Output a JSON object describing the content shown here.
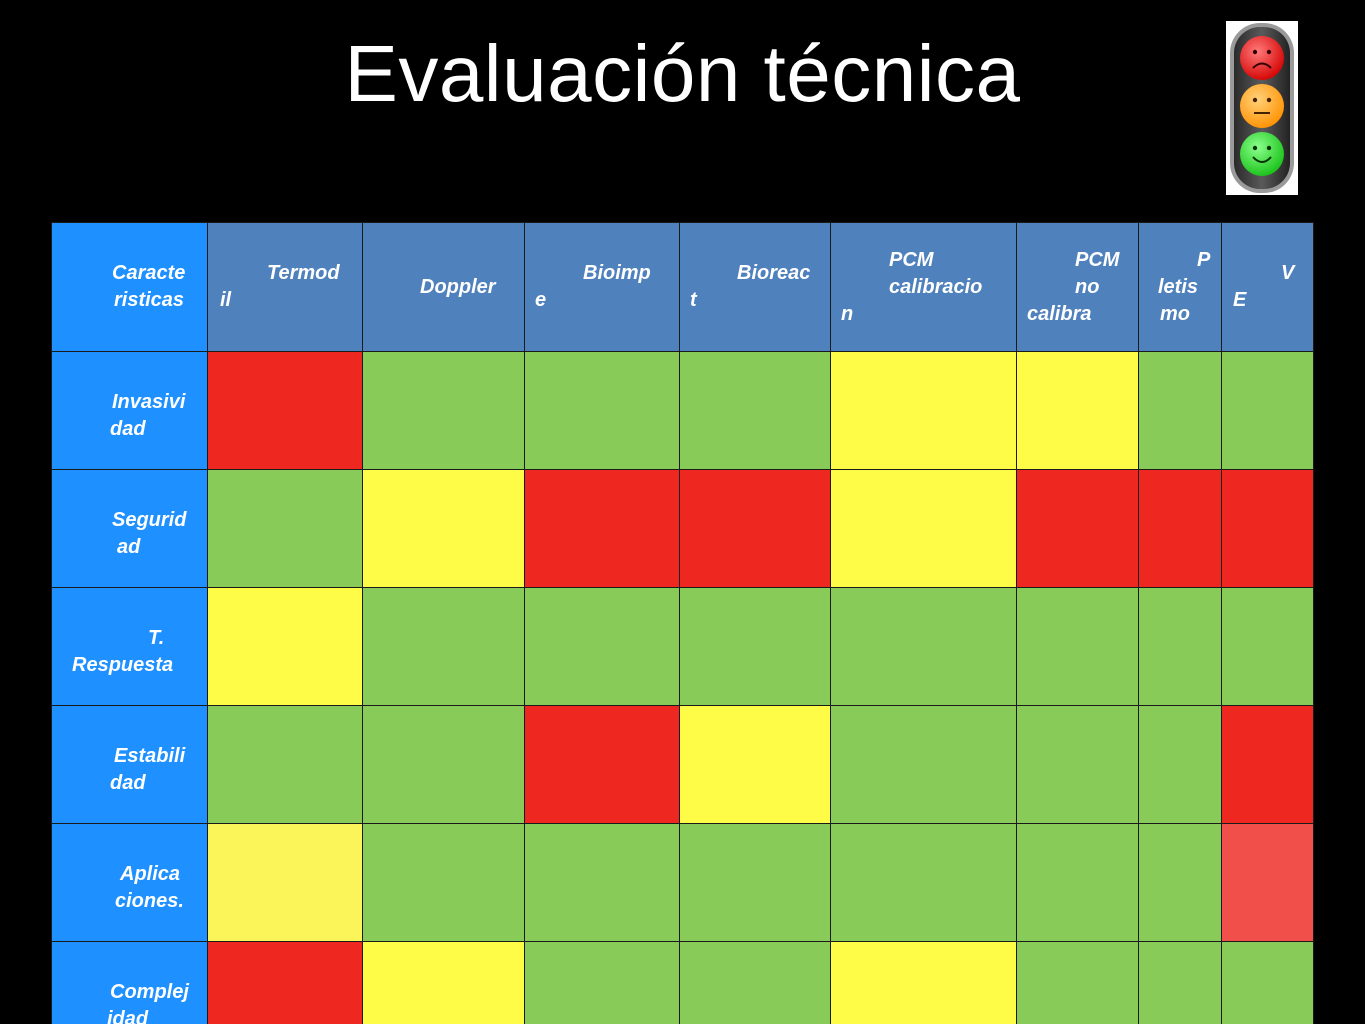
{
  "title": "Evaluación técnica",
  "colors": {
    "background": "#000000",
    "header_blue": "#4f81bd",
    "rowhead_blue": "#1e90ff",
    "red": "#ee2820",
    "green": "#88cb58",
    "yellow": "#fffc48",
    "pale_yellow": "#fbf55a",
    "light_red": "#f04f4a"
  },
  "traffic_light_icon": "traffic-light-faces-icon",
  "corner_header": [
    "Caracte",
    "risticas"
  ],
  "columns": [
    {
      "lines": [
        "Termod",
        "il"
      ]
    },
    {
      "lines": [
        "Doppler"
      ]
    },
    {
      "lines": [
        "Bioimp",
        "e"
      ]
    },
    {
      "lines": [
        "Bioreac",
        "t"
      ]
    },
    {
      "lines": [
        "PCM",
        "calibracio",
        "n"
      ]
    },
    {
      "lines": [
        "PCM",
        "no",
        "calibra"
      ]
    },
    {
      "lines": [
        "P",
        "letis",
        "mo"
      ]
    },
    {
      "lines": [
        "V",
        "E"
      ]
    }
  ],
  "rows": [
    {
      "lines": [
        "Invasivi",
        "dad"
      ],
      "cells": [
        "red",
        "green",
        "green",
        "green",
        "yellow",
        "yellow",
        "green",
        "green"
      ]
    },
    {
      "lines": [
        "Segurid",
        "ad"
      ],
      "cells": [
        "green",
        "yellow",
        "red",
        "red",
        "yellow",
        "red",
        "red",
        "red"
      ]
    },
    {
      "lines": [
        "T.",
        "Respuesta"
      ],
      "cells": [
        "yellow",
        "green",
        "green",
        "green",
        "green",
        "green",
        "green",
        "green"
      ]
    },
    {
      "lines": [
        "Estabili",
        "dad"
      ],
      "cells": [
        "green",
        "green",
        "red",
        "yellow",
        "green",
        "green",
        "green",
        "red"
      ]
    },
    {
      "lines": [
        "Aplica",
        "ciones."
      ],
      "cells": [
        "paleyellow",
        "green",
        "green",
        "green",
        "green",
        "green",
        "green",
        "lightred"
      ]
    },
    {
      "lines": [
        "Complej",
        "idad"
      ],
      "cells": [
        "red",
        "yellow",
        "green",
        "green",
        "yellow",
        "green",
        "green",
        "green"
      ]
    }
  ]
}
